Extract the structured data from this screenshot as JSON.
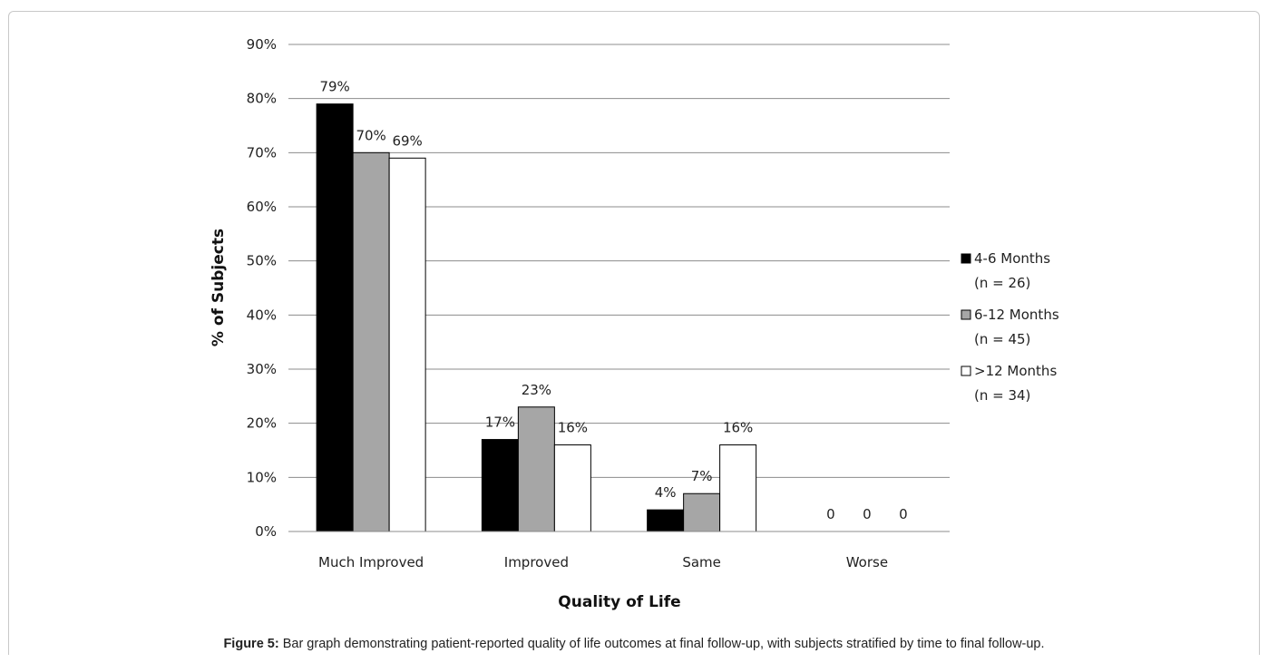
{
  "caption": {
    "label": "Figure 5:",
    "text": " Bar graph demonstrating patient-reported quality of life outcomes at final follow-up, with subjects stratified by time to final follow-up."
  },
  "chart_data": {
    "type": "bar",
    "title": "",
    "xlabel": "Quality of Life",
    "ylabel": "% of Subjects",
    "ylim": [
      0,
      90
    ],
    "yticks": [
      "0%",
      "10%",
      "20%",
      "30%",
      "40%",
      "50%",
      "60%",
      "70%",
      "80%",
      "90%"
    ],
    "grid": true,
    "legend_position": "right",
    "categories": [
      "Much Improved",
      "Improved",
      "Same",
      "Worse"
    ],
    "series": [
      {
        "name": "4-6 Months",
        "subname": "(n = 26)",
        "color": "#000000",
        "values": [
          79,
          17,
          4,
          0
        ],
        "labels": [
          "79%",
          "17%",
          "4%",
          "0"
        ]
      },
      {
        "name": "6-12 Months",
        "subname": "(n = 45)",
        "color": "#a6a6a6",
        "values": [
          70,
          23,
          7,
          0
        ],
        "labels": [
          "70%",
          "23%",
          "7%",
          "0"
        ]
      },
      {
        "name": ">12 Months",
        "subname": "(n = 34)",
        "color": "#ffffff",
        "values": [
          69,
          16,
          16,
          0
        ],
        "labels": [
          "69%",
          "16%",
          "16%",
          "0"
        ]
      }
    ]
  }
}
